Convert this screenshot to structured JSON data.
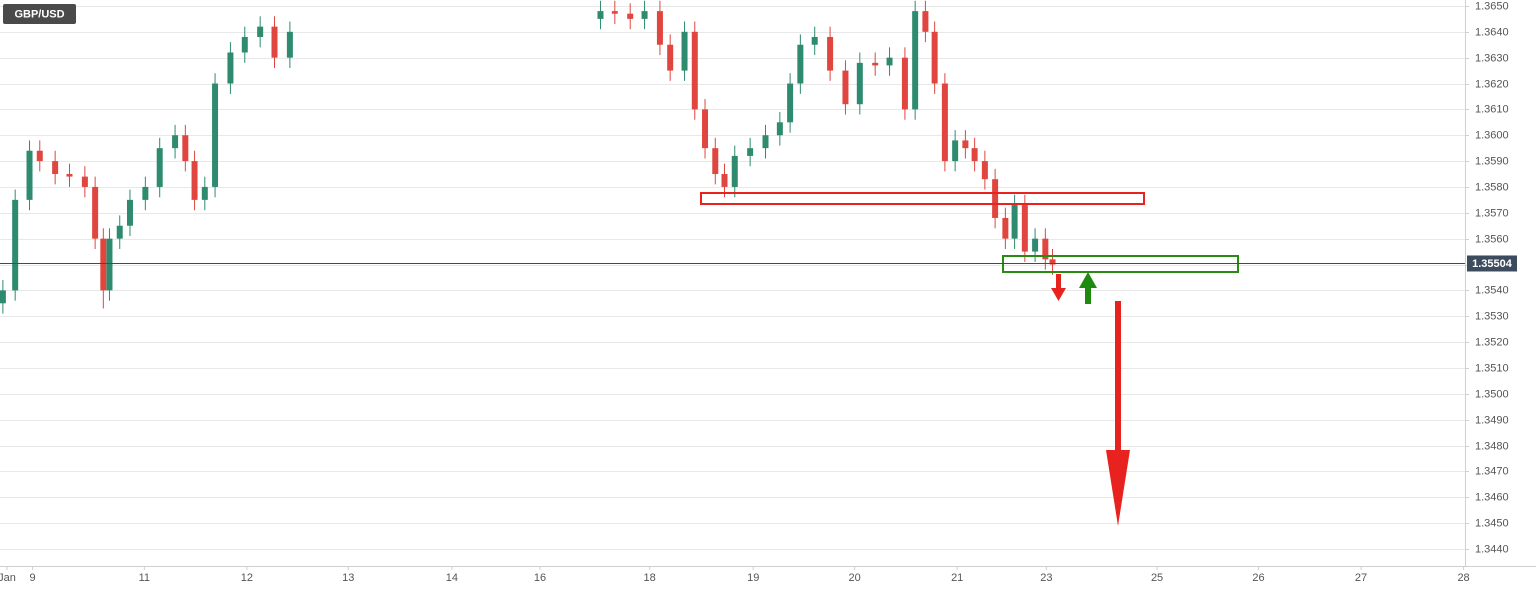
{
  "chart_data": {
    "type": "candlestick",
    "title": "GBP/USD",
    "x": [
      -0.04,
      0.08,
      0.22,
      0.32,
      0.47,
      0.61,
      0.76,
      0.86,
      0.94,
      1.0,
      1.1,
      1.2,
      1.35,
      1.49,
      1.64,
      1.74,
      1.83,
      1.93,
      2.03,
      2.18,
      2.32,
      2.47,
      2.61,
      2.76,
      5.79,
      5.93,
      6.08,
      6.22,
      6.37,
      6.47,
      6.61,
      6.71,
      6.81,
      6.91,
      7.0,
      7.1,
      7.25,
      7.4,
      7.54,
      7.64,
      7.74,
      7.88,
      8.03,
      8.18,
      8.32,
      8.47,
      8.61,
      8.76,
      8.86,
      8.96,
      9.05,
      9.15,
      9.25,
      9.35,
      9.44,
      9.54,
      9.64,
      9.74,
      9.83,
      9.93,
      10.03,
      10.13,
      10.2
    ],
    "open": [
      1.3535,
      1.354,
      1.3575,
      1.3594,
      1.359,
      1.3585,
      1.3584,
      1.358,
      1.356,
      1.354,
      1.356,
      1.3565,
      1.3575,
      1.358,
      1.3595,
      1.36,
      1.359,
      1.3575,
      1.358,
      1.362,
      1.3632,
      1.3638,
      1.3642,
      1.363,
      1.3645,
      1.3648,
      1.3647,
      1.3645,
      1.3648,
      1.3635,
      1.3625,
      1.364,
      1.361,
      1.3595,
      1.3585,
      1.358,
      1.3592,
      1.3595,
      1.36,
      1.3605,
      1.362,
      1.3635,
      1.3638,
      1.3625,
      1.3612,
      1.3628,
      1.3627,
      1.363,
      1.361,
      1.3648,
      1.364,
      1.362,
      1.359,
      1.3598,
      1.3595,
      1.359,
      1.3583,
      1.3568,
      1.356,
      1.3573,
      1.3555,
      1.356,
      1.3552
    ],
    "high": [
      1.3544,
      1.3579,
      1.3598,
      1.3598,
      1.3594,
      1.3589,
      1.3588,
      1.3584,
      1.3564,
      1.3564,
      1.3569,
      1.3579,
      1.3584,
      1.3599,
      1.3604,
      1.3604,
      1.3594,
      1.3584,
      1.3624,
      1.3636,
      1.3642,
      1.3646,
      1.3646,
      1.3644,
      1.3652,
      1.3652,
      1.3651,
      1.3652,
      1.3652,
      1.3639,
      1.3644,
      1.3644,
      1.3614,
      1.3599,
      1.3589,
      1.3596,
      1.3599,
      1.3604,
      1.3609,
      1.3624,
      1.3639,
      1.3642,
      1.3642,
      1.3629,
      1.3632,
      1.3632,
      1.3634,
      1.3634,
      1.3652,
      1.3652,
      1.3644,
      1.3624,
      1.3602,
      1.3602,
      1.3599,
      1.3594,
      1.3587,
      1.3572,
      1.3577,
      1.3577,
      1.3564,
      1.3564,
      1.3556
    ],
    "low": [
      1.3531,
      1.3536,
      1.3571,
      1.3586,
      1.3581,
      1.358,
      1.3576,
      1.3556,
      1.3533,
      1.3536,
      1.3556,
      1.3561,
      1.3571,
      1.3576,
      1.3591,
      1.3586,
      1.3571,
      1.3571,
      1.3576,
      1.3616,
      1.3628,
      1.3634,
      1.3626,
      1.3626,
      1.3641,
      1.3643,
      1.3641,
      1.3641,
      1.3631,
      1.3621,
      1.3621,
      1.3606,
      1.3591,
      1.3581,
      1.3576,
      1.3576,
      1.3588,
      1.3591,
      1.3596,
      1.3601,
      1.3616,
      1.3631,
      1.3621,
      1.3608,
      1.3608,
      1.3623,
      1.3623,
      1.3606,
      1.3606,
      1.3636,
      1.3616,
      1.3586,
      1.3586,
      1.3591,
      1.3586,
      1.3579,
      1.3564,
      1.3556,
      1.3556,
      1.3551,
      1.3551,
      1.3548,
      1.3546
    ],
    "close": [
      1.354,
      1.3575,
      1.3594,
      1.359,
      1.3585,
      1.3584,
      1.358,
      1.356,
      1.354,
      1.356,
      1.3565,
      1.3575,
      1.358,
      1.3595,
      1.36,
      1.359,
      1.3575,
      1.358,
      1.362,
      1.3632,
      1.3638,
      1.3642,
      1.363,
      1.364,
      1.3648,
      1.3647,
      1.3645,
      1.3648,
      1.3635,
      1.3625,
      1.364,
      1.361,
      1.3595,
      1.3585,
      1.358,
      1.3592,
      1.3595,
      1.36,
      1.3605,
      1.362,
      1.3635,
      1.3638,
      1.3625,
      1.3612,
      1.3628,
      1.3627,
      1.363,
      1.361,
      1.3648,
      1.364,
      1.362,
      1.359,
      1.3598,
      1.3595,
      1.359,
      1.3583,
      1.3568,
      1.356,
      1.3573,
      1.3555,
      1.356,
      1.3552,
      1.355
    ],
    "up_color": "#2e8b6f",
    "down_color": "#e0463f",
    "last_price": 1.35504,
    "last_price_color": "#3d4b5e",
    "xlim": [
      -0.068,
      14.224
    ],
    "ylim": [
      1.34334,
      1.36523
    ],
    "xticks": [
      {
        "value": 0,
        "label": "Jan"
      },
      {
        "value": 0.25,
        "label": "9"
      },
      {
        "value": 1.34,
        "label": "11"
      },
      {
        "value": 2.34,
        "label": "12"
      },
      {
        "value": 3.33,
        "label": "13"
      },
      {
        "value": 4.34,
        "label": "14"
      },
      {
        "value": 5.2,
        "label": "16"
      },
      {
        "value": 6.27,
        "label": "18"
      },
      {
        "value": 7.28,
        "label": "19"
      },
      {
        "value": 8.27,
        "label": "20"
      },
      {
        "value": 9.27,
        "label": "21"
      },
      {
        "value": 10.14,
        "label": "23"
      },
      {
        "value": 11.22,
        "label": "25"
      },
      {
        "value": 12.21,
        "label": "26"
      },
      {
        "value": 13.21,
        "label": "27"
      },
      {
        "value": 14.21,
        "label": "28"
      }
    ],
    "yticks": [
      {
        "value": 1.344,
        "label": "1.3440"
      },
      {
        "value": 1.345,
        "label": "1.3450"
      },
      {
        "value": 1.346,
        "label": "1.3460"
      },
      {
        "value": 1.347,
        "label": "1.3470"
      },
      {
        "value": 1.348,
        "label": "1.3480"
      },
      {
        "value": 1.349,
        "label": "1.3490"
      },
      {
        "value": 1.35,
        "label": "1.3500"
      },
      {
        "value": 1.351,
        "label": "1.3510"
      },
      {
        "value": 1.352,
        "label": "1.3520"
      },
      {
        "value": 1.353,
        "label": "1.3530"
      },
      {
        "value": 1.354,
        "label": "1.3540"
      },
      {
        "value": 1.355,
        "label": "1.3550"
      },
      {
        "value": 1.356,
        "label": "1.3560"
      },
      {
        "value": 1.357,
        "label": "1.3570"
      },
      {
        "value": 1.358,
        "label": "1.3580"
      },
      {
        "value": 1.359,
        "label": "1.3590"
      },
      {
        "value": 1.36,
        "label": "1.3600"
      },
      {
        "value": 1.361,
        "label": "1.3610"
      },
      {
        "value": 1.362,
        "label": "1.3620"
      },
      {
        "value": 1.363,
        "label": "1.3630"
      },
      {
        "value": 1.364,
        "label": "1.3640"
      },
      {
        "value": 1.365,
        "label": "1.3650"
      }
    ],
    "grid": true
  }
}
